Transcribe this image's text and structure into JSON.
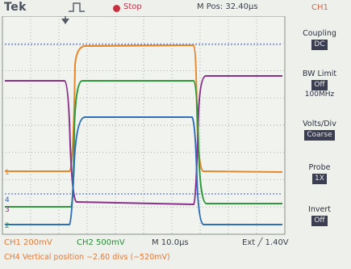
{
  "header": {
    "brand": "Tek",
    "run_state": "Stop",
    "position": "M Pos: 32.40µs",
    "selected_channel": "CH1"
  },
  "side_menu": {
    "coupling": {
      "label": "Coupling",
      "value": "DC"
    },
    "bw_limit": {
      "label": "BW Limit",
      "value": "Off",
      "sub": "100MHz"
    },
    "volts_div": {
      "label": "Volts/Div",
      "value": "Coarse"
    },
    "probe": {
      "label": "Probe",
      "value": "1X"
    },
    "invert": {
      "label": "Invert",
      "value": "Off"
    }
  },
  "markers": {
    "ch1": "1",
    "ch4": "4",
    "ch3": "3",
    "ch2": "2"
  },
  "status": {
    "ch1_scale": "CH1  200mV",
    "ch2_scale": "CH2  500mV",
    "timebase": "M 10.0µs",
    "trigger": "Ext ╱ 1.40V"
  },
  "message": "CH4 Vertical position −2.60 divs (−520mV)",
  "colors": {
    "ch1": "#e8862a",
    "ch2": "#2f9a3c",
    "ch3": "#8a2f8a",
    "ch4": "#2f6fb8",
    "ext_ref": "#3a5fc0",
    "grid": "#9aa1a0",
    "border": "#8a8f8a",
    "trigger_marker": "#555b66"
  },
  "icons": [
    "trigger-mode-icon",
    "run-state-dot-icon",
    "trigger-position-icon"
  ]
}
